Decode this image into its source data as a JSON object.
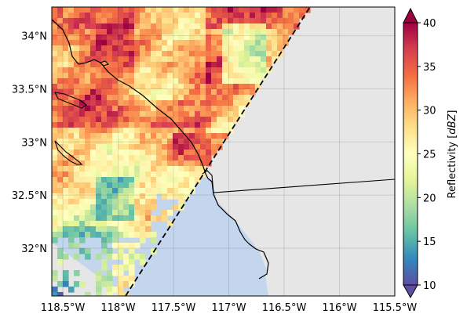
{
  "map": {
    "lon_ticks": [
      "118.5°W",
      "118°W",
      "117.5°W",
      "117°W",
      "116.5°W",
      "116°W",
      "115.5°W"
    ],
    "lat_ticks": [
      "34°N",
      "33.5°N",
      "33°N",
      "32.5°N",
      "32°N"
    ],
    "lon_range": [
      -118.6,
      -115.5
    ],
    "lat_range": [
      31.55,
      34.27
    ],
    "ocean_color": "#c3d6ee",
    "no_data_color": "#e6e6e6",
    "grid": true
  },
  "colorbar": {
    "label_prefix": "Reflectivity ",
    "label_unit": "dBZ",
    "range": [
      10,
      40
    ],
    "ticks": [
      "40",
      "35",
      "30",
      "25",
      "20",
      "15",
      "10"
    ],
    "colormap": "Spectral_r",
    "extend": "both"
  }
}
